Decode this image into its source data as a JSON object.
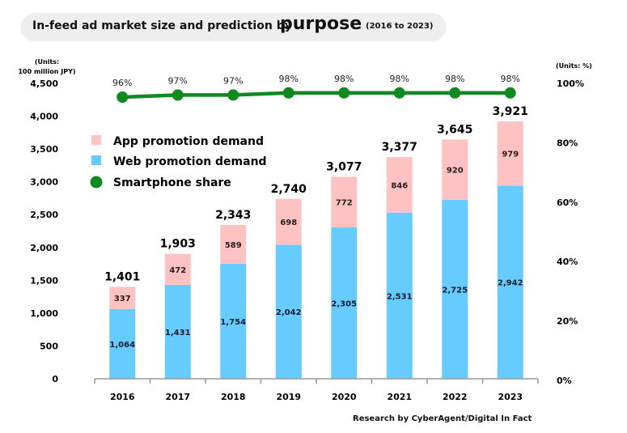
{
  "title": {
    "main": "In-feed ad market size and prediction by",
    "emphasis": "purpose",
    "range": "(2016 to 2023)"
  },
  "credit": "Research by CyberAgent/Digital In Fact",
  "colors": {
    "app": "#ffc2c2",
    "web": "#66ccff",
    "share": "#0f8a1f",
    "title_bg": "#eeeeee",
    "axis": "#999999"
  },
  "chart_data": {
    "type": "bar",
    "stacked": true,
    "title": "In-feed ad market size and prediction by purpose (2016 to 2023)",
    "categories": [
      "2016",
      "2017",
      "2018",
      "2019",
      "2020",
      "2021",
      "2022",
      "2023"
    ],
    "series": [
      {
        "name": "Web promotion demand",
        "type": "bar",
        "axis": "left",
        "values": [
          1064,
          1431,
          1754,
          2042,
          2305,
          2531,
          2725,
          2942
        ],
        "labels": [
          "1,064",
          "1,431",
          "1,754",
          "2,042",
          "2,305",
          "2,531",
          "2,725",
          "2,942"
        ]
      },
      {
        "name": "App promotion demand",
        "type": "bar",
        "axis": "left",
        "values": [
          337,
          472,
          589,
          698,
          772,
          846,
          920,
          979
        ],
        "labels": [
          "337",
          "472",
          "589",
          "698",
          "772",
          "846",
          "920",
          "979"
        ]
      },
      {
        "name": "Smartphone share",
        "type": "line",
        "axis": "right",
        "values": [
          96,
          97,
          97,
          98,
          98,
          98,
          98,
          98
        ],
        "labels": [
          "96%",
          "97%",
          "97%",
          "98%",
          "98%",
          "98%",
          "98%",
          "98%"
        ]
      }
    ],
    "totals": [
      1401,
      1903,
      2343,
      2740,
      3077,
      3377,
      3645,
      3921
    ],
    "total_labels": [
      "1,401",
      "1,903",
      "2,343",
      "2,740",
      "3,077",
      "3,377",
      "3,645",
      "3,921"
    ],
    "left_axis": {
      "unit_line1": "(Units:",
      "unit_line2": "100 million JPY)",
      "ylim": [
        0,
        4500
      ],
      "ticks": [
        0,
        500,
        1000,
        1500,
        2000,
        2500,
        3000,
        3500,
        4000,
        4500
      ],
      "tick_labels": [
        "0",
        "500",
        "1,000",
        "1,500",
        "2,000",
        "2,500",
        "3,000",
        "3,500",
        "4,000",
        "4,500"
      ]
    },
    "right_axis": {
      "unit": "(Units: %)",
      "ylim": [
        0,
        100
      ],
      "ticks": [
        0,
        20,
        40,
        60,
        80,
        100
      ],
      "tick_labels": [
        "0%",
        "20%",
        "40%",
        "60%",
        "80%",
        "100%"
      ]
    },
    "legend": {
      "placement": "top-left",
      "items": [
        {
          "label": "App promotion demand",
          "marker": "square",
          "color_key": "app"
        },
        {
          "label": "Web promotion demand",
          "marker": "square",
          "color_key": "web"
        },
        {
          "label": "Smartphone share",
          "marker": "circle",
          "color_key": "share"
        }
      ]
    },
    "grid": false
  }
}
